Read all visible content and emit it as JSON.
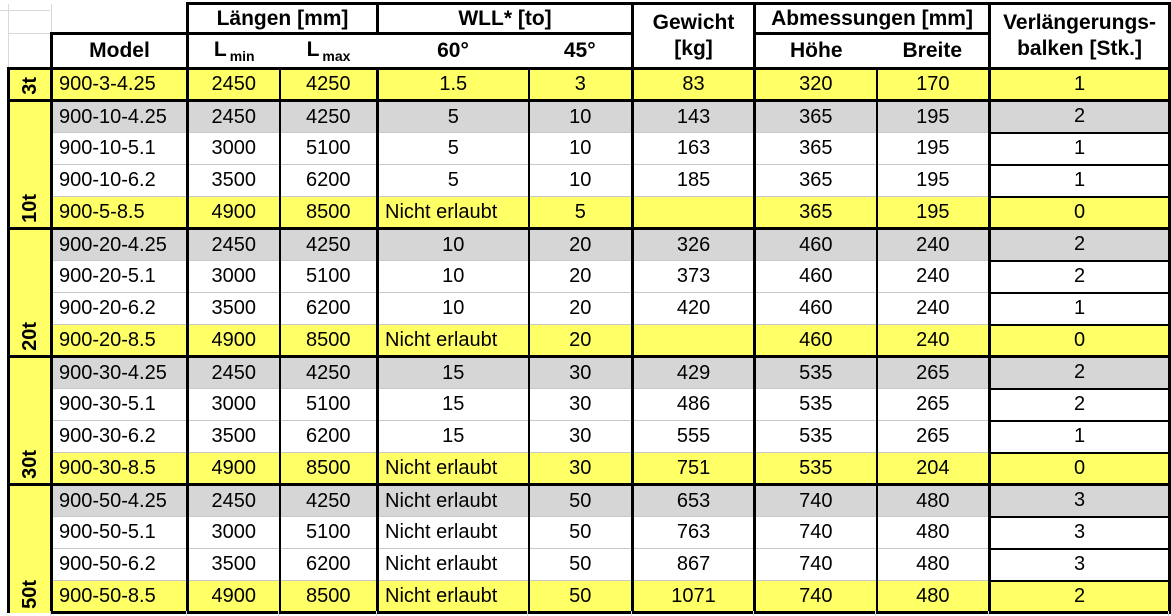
{
  "table": {
    "not_allowed_label": "Nicht erlaubt",
    "colors": {
      "yellow": "#FFFF66",
      "gray": "#D6D6D6",
      "border": "#000000",
      "grid_faint": "#D9D9D9"
    },
    "headers": {
      "model": "Model",
      "laengen": "Längen [mm]",
      "l_symbol": "L",
      "l_min_sub": "min",
      "l_max_sub": "max",
      "wll": "WLL* [to]",
      "deg60": "60°",
      "deg45": "45°",
      "gewicht_line1": "Gewicht",
      "gewicht_line2": "[kg]",
      "abmessungen": "Abmessungen [mm]",
      "hoehe": "Höhe",
      "breite": "Breite",
      "verlaengerung_line1": "Verlängerungs-",
      "verlaengerung_line2": "balken [Stk.]"
    },
    "groups": [
      {
        "label": "3t",
        "rows": [
          {
            "model": "900-3-4.25",
            "l_min": "2450",
            "l_max": "4250",
            "wll60": "1.5",
            "wll45": "3",
            "gewicht": "83",
            "hoehe": "320",
            "breite": "170",
            "verlaengerung": "1",
            "style": "yellow"
          }
        ]
      },
      {
        "label": "10t",
        "rows": [
          {
            "model": "900-10-4.25",
            "l_min": "2450",
            "l_max": "4250",
            "wll60": "5",
            "wll45": "10",
            "gewicht": "143",
            "hoehe": "365",
            "breite": "195",
            "verlaengerung": "2",
            "style": "gray"
          },
          {
            "model": "900-10-5.1",
            "l_min": "3000",
            "l_max": "5100",
            "wll60": "5",
            "wll45": "10",
            "gewicht": "163",
            "hoehe": "365",
            "breite": "195",
            "verlaengerung": "1",
            "style": "white"
          },
          {
            "model": "900-10-6.2",
            "l_min": "3500",
            "l_max": "6200",
            "wll60": "5",
            "wll45": "10",
            "gewicht": "185",
            "hoehe": "365",
            "breite": "195",
            "verlaengerung": "1",
            "style": "white"
          },
          {
            "model": "900-5-8.5",
            "l_min": "4900",
            "l_max": "8500",
            "wll60": "Nicht erlaubt",
            "wll45": "5",
            "gewicht": "",
            "hoehe": "365",
            "breite": "195",
            "verlaengerung": "0",
            "style": "yellow"
          }
        ]
      },
      {
        "label": "20t",
        "rows": [
          {
            "model": "900-20-4.25",
            "l_min": "2450",
            "l_max": "4250",
            "wll60": "10",
            "wll45": "20",
            "gewicht": "326",
            "hoehe": "460",
            "breite": "240",
            "verlaengerung": "2",
            "style": "gray"
          },
          {
            "model": "900-20-5.1",
            "l_min": "3000",
            "l_max": "5100",
            "wll60": "10",
            "wll45": "20",
            "gewicht": "373",
            "hoehe": "460",
            "breite": "240",
            "verlaengerung": "2",
            "style": "white"
          },
          {
            "model": "900-20-6.2",
            "l_min": "3500",
            "l_max": "6200",
            "wll60": "10",
            "wll45": "20",
            "gewicht": "420",
            "hoehe": "460",
            "breite": "240",
            "verlaengerung": "1",
            "style": "white"
          },
          {
            "model": "900-20-8.5",
            "l_min": "4900",
            "l_max": "8500",
            "wll60": "Nicht erlaubt",
            "wll45": "20",
            "gewicht": "",
            "hoehe": "460",
            "breite": "240",
            "verlaengerung": "0",
            "style": "yellow"
          }
        ]
      },
      {
        "label": "30t",
        "rows": [
          {
            "model": "900-30-4.25",
            "l_min": "2450",
            "l_max": "4250",
            "wll60": "15",
            "wll45": "30",
            "gewicht": "429",
            "hoehe": "535",
            "breite": "265",
            "verlaengerung": "2",
            "style": "gray"
          },
          {
            "model": "900-30-5.1",
            "l_min": "3000",
            "l_max": "5100",
            "wll60": "15",
            "wll45": "30",
            "gewicht": "486",
            "hoehe": "535",
            "breite": "265",
            "verlaengerung": "2",
            "style": "white"
          },
          {
            "model": "900-30-6.2",
            "l_min": "3500",
            "l_max": "6200",
            "wll60": "15",
            "wll45": "30",
            "gewicht": "555",
            "hoehe": "535",
            "breite": "265",
            "verlaengerung": "1",
            "style": "white"
          },
          {
            "model": "900-30-8.5",
            "l_min": "4900",
            "l_max": "8500",
            "wll60": "Nicht erlaubt",
            "wll45": "30",
            "gewicht": "751",
            "hoehe": "535",
            "breite": "204",
            "verlaengerung": "0",
            "style": "yellow"
          }
        ]
      },
      {
        "label": "50t",
        "rows": [
          {
            "model": "900-50-4.25",
            "l_min": "2450",
            "l_max": "4250",
            "wll60": "Nicht erlaubt",
            "wll45": "50",
            "gewicht": "653",
            "hoehe": "740",
            "breite": "480",
            "verlaengerung": "3",
            "style": "gray"
          },
          {
            "model": "900-50-5.1",
            "l_min": "3000",
            "l_max": "5100",
            "wll60": "Nicht erlaubt",
            "wll45": "50",
            "gewicht": "763",
            "hoehe": "740",
            "breite": "480",
            "verlaengerung": "3",
            "style": "white"
          },
          {
            "model": "900-50-6.2",
            "l_min": "3500",
            "l_max": "6200",
            "wll60": "Nicht erlaubt",
            "wll45": "50",
            "gewicht": "867",
            "hoehe": "740",
            "breite": "480",
            "verlaengerung": "3",
            "style": "white"
          },
          {
            "model": "900-50-8.5",
            "l_min": "4900",
            "l_max": "8500",
            "wll60": "Nicht erlaubt",
            "wll45": "50",
            "gewicht": "1071",
            "hoehe": "740",
            "breite": "480",
            "verlaengerung": "2",
            "style": "yellow"
          }
        ]
      }
    ]
  }
}
